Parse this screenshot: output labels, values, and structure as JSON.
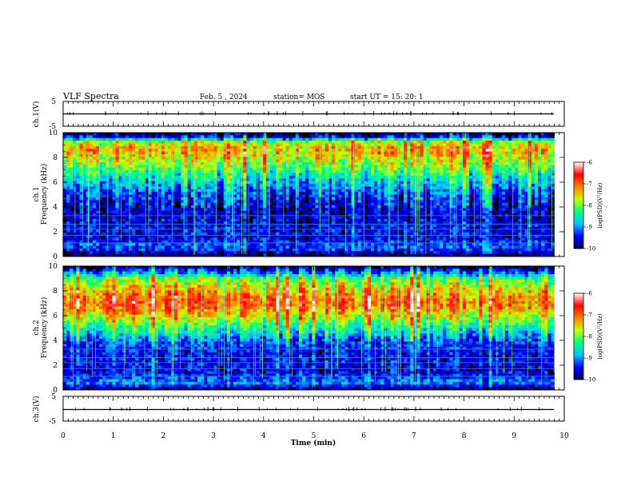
{
  "header": {
    "title": "VLF Spectra",
    "date": "Feb. 5 , 2024",
    "station": "station= MOS",
    "start": "start UT =  15: 20: 1"
  },
  "colors": {
    "scale": [
      "#000064",
      "#0000ff",
      "#00c8ff",
      "#00ff80",
      "#c8ff00",
      "#ff8000",
      "#ff0000",
      "#ffffff"
    ],
    "background": "#ffffff"
  },
  "chart_data": [
    {
      "type": "line",
      "name": "ch1-waveform",
      "ylabel": "ch.1(V)",
      "ylim": [
        -5,
        5
      ],
      "yticks": [
        "5",
        "-5"
      ],
      "baseline": 0,
      "grid": false
    },
    {
      "type": "heatmap",
      "name": "ch1-spectrogram",
      "ylabel_lines": [
        "ch.1",
        "Frequency (kHz)"
      ],
      "ylim": [
        0,
        10
      ],
      "yticks": [
        "0",
        "2",
        "4",
        "6",
        "8",
        "10"
      ],
      "xlim": [
        0,
        10
      ],
      "colorbar": {
        "label": "log(PSD)(V²/Hz)",
        "ticks": [
          "-6",
          "-7",
          "-8",
          "-9",
          "-10"
        ],
        "range": [
          -10,
          -6
        ]
      },
      "band_profile": [
        {
          "f": 0.0,
          "psd": -10.0
        },
        {
          "f": 0.6,
          "psd": -9.3
        },
        {
          "f": 1.0,
          "psd": -9.2
        },
        {
          "f": 1.5,
          "psd": -9.6
        },
        {
          "f": 2.0,
          "psd": -9.5
        },
        {
          "f": 3.0,
          "psd": -9.6
        },
        {
          "f": 4.0,
          "psd": -9.6
        },
        {
          "f": 5.0,
          "psd": -9.3
        },
        {
          "f": 6.0,
          "psd": -8.8
        },
        {
          "f": 7.0,
          "psd": -8.2
        },
        {
          "f": 8.0,
          "psd": -7.6
        },
        {
          "f": 8.7,
          "psd": -7.3
        },
        {
          "f": 9.3,
          "psd": -7.9
        },
        {
          "f": 9.6,
          "psd": -9.4
        },
        {
          "f": 10.0,
          "psd": -10.0
        }
      ]
    },
    {
      "type": "heatmap",
      "name": "ch2-spectrogram",
      "ylabel_lines": [
        "ch.2",
        "Frequency (kHz)"
      ],
      "ylim": [
        0,
        10
      ],
      "yticks": [
        "0",
        "2",
        "4",
        "6",
        "8",
        "10"
      ],
      "xlim": [
        0,
        10
      ],
      "colorbar": {
        "label": "log(PSD)(V²/Hz)",
        "ticks": [
          "-6",
          "-7",
          "-8",
          "-9",
          "-10"
        ],
        "range": [
          -10,
          -6
        ]
      },
      "band_profile": [
        {
          "f": 0.0,
          "psd": -10.0
        },
        {
          "f": 0.6,
          "psd": -9.0
        },
        {
          "f": 1.0,
          "psd": -9.3
        },
        {
          "f": 1.5,
          "psd": -9.6
        },
        {
          "f": 2.0,
          "psd": -9.5
        },
        {
          "f": 3.0,
          "psd": -9.5
        },
        {
          "f": 4.0,
          "psd": -9.2
        },
        {
          "f": 5.0,
          "psd": -8.4
        },
        {
          "f": 6.0,
          "psd": -7.6
        },
        {
          "f": 7.0,
          "psd": -6.9
        },
        {
          "f": 8.0,
          "psd": -7.4
        },
        {
          "f": 9.0,
          "psd": -8.1
        },
        {
          "f": 9.6,
          "psd": -9.3
        },
        {
          "f": 10.0,
          "psd": -10.0
        }
      ]
    },
    {
      "type": "line",
      "name": "ch3-waveform",
      "ylabel": "ch.3(V)",
      "ylim": [
        -5,
        5
      ],
      "yticks": [
        "5",
        "-5"
      ],
      "baseline": 0,
      "grid": false
    }
  ],
  "xaxis": {
    "label": "Time (min)",
    "xlim": [
      0,
      10
    ],
    "ticks": [
      "0",
      "1",
      "2",
      "3",
      "4",
      "5",
      "6",
      "7",
      "8",
      "9",
      "10"
    ],
    "data_end": 9.8
  }
}
